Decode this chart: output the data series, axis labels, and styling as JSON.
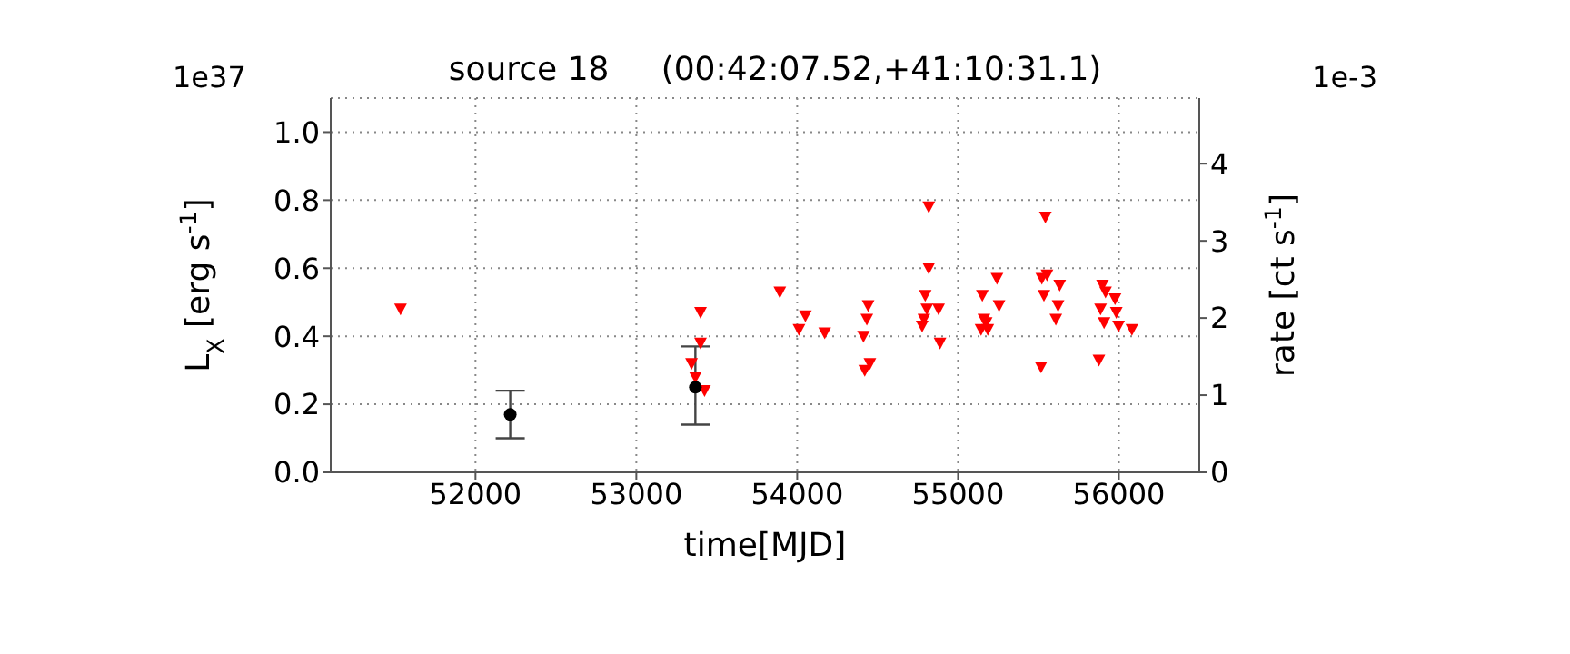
{
  "chart_data": {
    "type": "scatter",
    "title": "source 18     (00:42:07.52,+41:10:31.1)",
    "xlabel": "time[MJD]",
    "ylabel": "L$_{X}$ [erg s$^{-1}$]",
    "y2label": "rate [ct s$^{-1}$]",
    "annotations": [
      "1e37",
      "1e-3"
    ],
    "xlim": [
      51100,
      56500
    ],
    "xticks": [
      52000,
      53000,
      54000,
      55000,
      56000
    ],
    "ylim": [
      0,
      1.1
    ],
    "yticks": [
      {
        "value": 0,
        "label": "0.0"
      },
      {
        "value": 0.2,
        "label": "0.2"
      },
      {
        "value": 0.4,
        "label": "0.4"
      },
      {
        "value": 0.6,
        "label": "0.6"
      },
      {
        "value": 0.8,
        "label": "0.8"
      },
      {
        "value": 1,
        "label": "1.0"
      }
    ],
    "y2lim": [
      0,
      4.85
    ],
    "y2ticks": [
      0,
      1,
      2,
      3,
      4
    ],
    "grid": true,
    "legend": false,
    "series": [
      {
        "color": "#ff0000",
        "marker": "triangle",
        "x": [
          51534,
          53399,
          53399,
          53343,
          53367,
          53424,
          53892,
          54011,
          54051,
          54171,
          54412,
          54433,
          54441,
          54420,
          54452,
          54818,
          54818,
          54796,
          54806,
          54788,
          54777,
          54879,
          54888,
          55151,
          55143,
          55161,
          55175,
          55185,
          55242,
          55255,
          55543,
          55521,
          55553,
          55534,
          55516,
          55632,
          55622,
          55608,
          55898,
          55917,
          55886,
          55908,
          55876,
          55976,
          55984,
          55998,
          56081
        ],
        "values": [
          0.48,
          0.47,
          0.38,
          0.32,
          0.28,
          0.24,
          0.53,
          0.42,
          0.46,
          0.41,
          0.4,
          0.45,
          0.49,
          0.3,
          0.32,
          0.78,
          0.6,
          0.52,
          0.48,
          0.45,
          0.43,
          0.48,
          0.38,
          0.52,
          0.42,
          0.45,
          0.44,
          0.42,
          0.57,
          0.49,
          0.75,
          0.57,
          0.58,
          0.52,
          0.31,
          0.55,
          0.49,
          0.45,
          0.55,
          0.53,
          0.48,
          0.44,
          0.33,
          0.51,
          0.47,
          0.43,
          0.42
        ]
      },
      {
        "color": "#000000",
        "marker": "circle",
        "x": [
          52216,
          53367
        ],
        "values": [
          0.17,
          0.25
        ],
        "errors": [
          [
            0.1,
            0.24
          ],
          [
            0.14,
            0.37
          ]
        ]
      }
    ]
  }
}
